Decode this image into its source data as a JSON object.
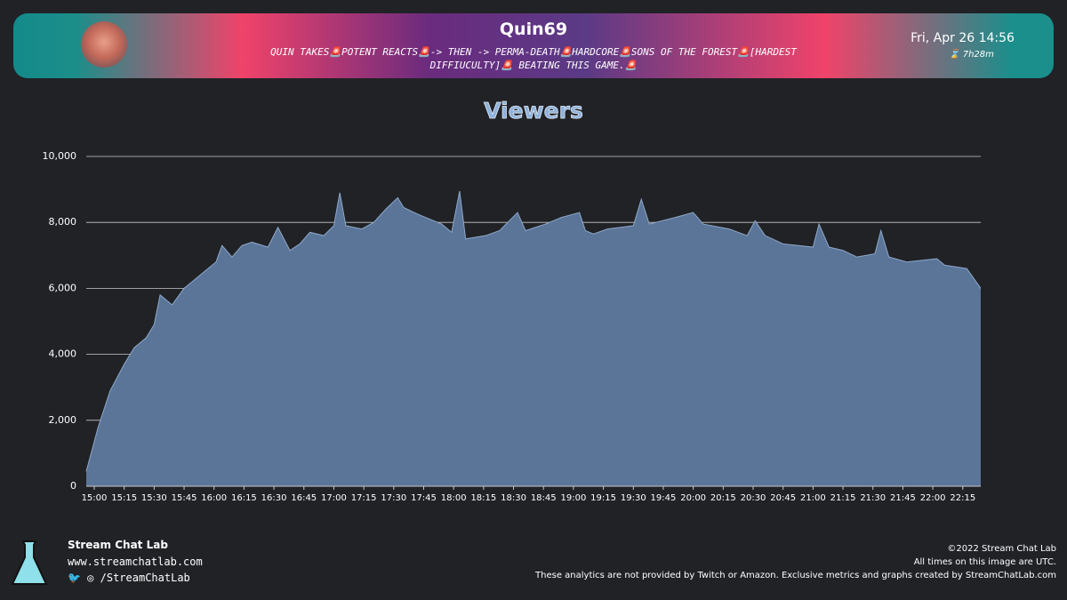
{
  "header": {
    "channel": "Quin69",
    "stream_title": "QUIN TAKES🚨POTENT REACTS🚨-> THEN -> PERMA-DEATH🚨HARDCORE🚨SONS OF THE FOREST🚨[HARDEST DIFFIUCULTY]🚨 BEATING THIS GAME.🚨",
    "date": "Fri, Apr 26 14:56",
    "duration": "7h28m"
  },
  "chart_data": {
    "type": "area",
    "title": "Viewers",
    "x": [
      "14:56",
      "15:02",
      "15:08",
      "15:15",
      "15:20",
      "15:26",
      "15:30",
      "15:33",
      "15:39",
      "15:45",
      "15:51",
      "15:57",
      "16:01",
      "16:04",
      "16:09",
      "16:14",
      "16:19",
      "16:27",
      "16:32",
      "16:38",
      "16:43",
      "16:48",
      "16:55",
      "17:00",
      "17:03",
      "17:06",
      "17:14",
      "17:20",
      "17:26",
      "17:32",
      "17:35",
      "17:42",
      "17:54",
      "17:59",
      "18:03",
      "18:06",
      "18:16",
      "18:23",
      "18:32",
      "18:36",
      "18:46",
      "18:54",
      "19:03",
      "19:06",
      "19:10",
      "19:17",
      "19:30",
      "19:34",
      "19:38",
      "19:51",
      "20:00",
      "20:05",
      "20:18",
      "20:27",
      "20:31",
      "20:36",
      "20:45",
      "21:00",
      "21:03",
      "21:08",
      "21:15",
      "21:22",
      "21:31",
      "21:34",
      "21:38",
      "21:47",
      "22:02",
      "22:06",
      "22:17",
      "22:24"
    ],
    "series": [
      {
        "name": "Viewers",
        "color": "#5b7599",
        "values": [
          450,
          1800,
          2900,
          3700,
          4200,
          4500,
          4900,
          5800,
          5500,
          6000,
          6300,
          6600,
          6800,
          7300,
          6950,
          7300,
          7400,
          7250,
          7850,
          7150,
          7350,
          7700,
          7600,
          7900,
          8900,
          7900,
          7800,
          8000,
          8400,
          8750,
          8450,
          8250,
          7950,
          7700,
          8950,
          7500,
          7600,
          7750,
          8300,
          7750,
          7950,
          8150,
          8300,
          7750,
          7650,
          7800,
          7900,
          8700,
          7950,
          8150,
          8300,
          7950,
          7800,
          7600,
          8050,
          7600,
          7350,
          7250,
          7950,
          7250,
          7150,
          6950,
          7050,
          7750,
          6950,
          6800,
          6900,
          6700,
          6600,
          6000
        ]
      }
    ],
    "xlim": [
      "14:56",
      "22:24"
    ],
    "xticks": [
      "15:00",
      "15:15",
      "15:30",
      "15:45",
      "16:00",
      "16:15",
      "16:30",
      "16:45",
      "17:00",
      "17:15",
      "17:30",
      "17:45",
      "18:00",
      "18:15",
      "18:30",
      "18:45",
      "19:00",
      "19:15",
      "19:30",
      "19:45",
      "20:00",
      "20:15",
      "20:30",
      "20:45",
      "21:00",
      "21:15",
      "21:30",
      "21:45",
      "22:00",
      "22:15"
    ],
    "ylim": [
      0,
      10000
    ],
    "yticks": [
      0,
      {
        "value": 2000,
        "label": "2,000"
      },
      {
        "value": 4000,
        "label": "4,000"
      },
      {
        "value": 6000,
        "label": "6,000"
      },
      {
        "value": 8000,
        "label": "8,000"
      },
      {
        "value": 10000,
        "label": "10,000"
      }
    ],
    "grid": true
  },
  "footer": {
    "brand": "Stream Chat Lab",
    "url": "www.streamchatlab.com",
    "handle": "/StreamChatLab",
    "copyright": "©2022 Stream Chat Lab",
    "timezone_note": "All times on this image are UTC.",
    "disclaimer": "These analytics are not provided by Twitch or Amazon. Exclusive metrics and graphs created by StreamChatLab.com"
  }
}
